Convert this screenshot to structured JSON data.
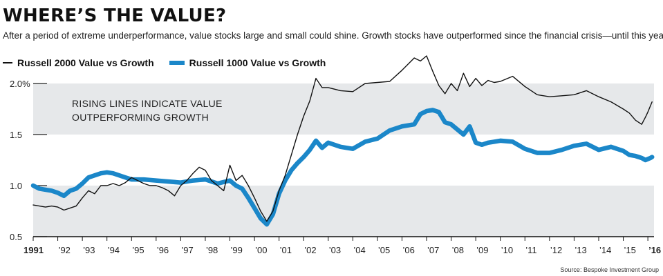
{
  "header": {
    "title": "WHERE’S THE VALUE?",
    "subtitle": "After a period of extreme underperformance, value stocks large and small could shine. Growth stocks have outperformed since the financial crisis—until this year."
  },
  "legend": {
    "series1": "Russell 2000 Value vs Growth",
    "series2": "Russell 1000 Value vs Growth"
  },
  "source": "Source: Bespoke Investment Group",
  "chart_data": {
    "type": "line",
    "title": "WHERE’S THE VALUE?",
    "annotation": [
      "RISING LINES INDICATE VALUE",
      "OUTPERFORMING GROWTH"
    ],
    "xlim": [
      1991,
      2016.25
    ],
    "ylim": [
      0.5,
      2.0
    ],
    "xticks": [
      {
        "x": 1991,
        "label": "1991"
      },
      {
        "x": 1992,
        "label": "’92"
      },
      {
        "x": 1993,
        "label": "’93"
      },
      {
        "x": 1994,
        "label": "’94"
      },
      {
        "x": 1995,
        "label": "’95"
      },
      {
        "x": 1996,
        "label": "’96"
      },
      {
        "x": 1997,
        "label": "’97"
      },
      {
        "x": 1998,
        "label": "’98"
      },
      {
        "x": 1999,
        "label": "’99"
      },
      {
        "x": 2000,
        "label": "’00"
      },
      {
        "x": 2001,
        "label": "’01"
      },
      {
        "x": 2002,
        "label": "’02"
      },
      {
        "x": 2003,
        "label": "’03"
      },
      {
        "x": 2004,
        "label": "’04"
      },
      {
        "x": 2005,
        "label": "’05"
      },
      {
        "x": 2006,
        "label": "’06"
      },
      {
        "x": 2007,
        "label": "’07"
      },
      {
        "x": 2008,
        "label": "’08"
      },
      {
        "x": 2009,
        "label": "’09"
      },
      {
        "x": 2010,
        "label": "’10"
      },
      {
        "x": 2011,
        "label": "’11"
      },
      {
        "x": 2012,
        "label": "’12"
      },
      {
        "x": 2013,
        "label": "’13"
      },
      {
        "x": 2014,
        "label": "’14"
      },
      {
        "x": 2015,
        "label": "’15"
      },
      {
        "x": 2016,
        "label": "’16"
      }
    ],
    "yticks": [
      {
        "y": 0.5,
        "label": "0.5"
      },
      {
        "y": 1.0,
        "label": "1.0"
      },
      {
        "y": 1.5,
        "label": "1.5"
      },
      {
        "y": 2.0,
        "label": "2.0%"
      }
    ],
    "bands": [
      [
        0.5,
        1.0
      ],
      [
        1.5,
        2.0
      ]
    ],
    "colors": {
      "series1": "#111111",
      "series2": "#1b87c9",
      "band": "#e6e8ea"
    },
    "series": [
      {
        "name": "Russell 2000 Value vs Growth",
        "x": [
          1991.0,
          1991.25,
          1991.5,
          1991.75,
          1992.0,
          1992.25,
          1992.5,
          1992.75,
          1993.0,
          1993.25,
          1993.5,
          1993.75,
          1994.0,
          1994.25,
          1994.5,
          1994.75,
          1995.0,
          1995.25,
          1995.5,
          1995.75,
          1996.0,
          1996.25,
          1996.5,
          1996.75,
          1997.0,
          1997.25,
          1997.5,
          1997.75,
          1998.0,
          1998.25,
          1998.5,
          1998.75,
          1999.0,
          1999.25,
          1999.5,
          1999.75,
          2000.0,
          2000.25,
          2000.5,
          2000.75,
          2001.0,
          2001.25,
          2001.5,
          2001.75,
          2002.0,
          2002.25,
          2002.5,
          2002.75,
          2003.0,
          2003.5,
          2004.0,
          2004.5,
          2005.0,
          2005.5,
          2006.0,
          2006.5,
          2006.75,
          2007.0,
          2007.25,
          2007.5,
          2007.75,
          2008.0,
          2008.25,
          2008.5,
          2008.75,
          2009.0,
          2009.25,
          2009.5,
          2009.75,
          2010.0,
          2010.5,
          2011.0,
          2011.5,
          2012.0,
          2012.5,
          2013.0,
          2013.5,
          2014.0,
          2014.5,
          2015.0,
          2015.25,
          2015.5,
          2015.75,
          2015.9,
          2016.0,
          2016.1,
          2016.17
        ],
        "values": [
          0.81,
          0.8,
          0.79,
          0.8,
          0.79,
          0.76,
          0.78,
          0.8,
          0.88,
          0.95,
          0.92,
          1.0,
          1.0,
          1.02,
          1.0,
          1.03,
          1.08,
          1.05,
          1.02,
          1.0,
          1.0,
          0.98,
          0.95,
          0.9,
          1.0,
          1.05,
          1.12,
          1.18,
          1.15,
          1.05,
          1.0,
          0.95,
          1.2,
          1.05,
          1.1,
          1.0,
          0.88,
          0.75,
          0.65,
          0.75,
          0.95,
          1.1,
          1.3,
          1.5,
          1.68,
          1.83,
          2.05,
          1.96,
          1.96,
          1.93,
          1.92,
          2.0,
          2.01,
          2.02,
          2.13,
          2.25,
          2.22,
          2.27,
          2.12,
          1.98,
          1.9,
          2.0,
          1.93,
          2.1,
          1.97,
          2.05,
          1.98,
          2.03,
          2.01,
          2.02,
          2.07,
          1.97,
          1.89,
          1.87,
          1.88,
          1.89,
          1.93,
          1.87,
          1.82,
          1.75,
          1.71,
          1.64,
          1.6,
          1.67,
          1.72,
          1.78,
          1.82
        ]
      },
      {
        "name": "Russell 1000 Value vs Growth",
        "x": [
          1991.0,
          1991.25,
          1991.5,
          1991.75,
          1992.0,
          1992.25,
          1992.5,
          1992.75,
          1993.0,
          1993.25,
          1993.5,
          1993.75,
          1994.0,
          1994.25,
          1994.5,
          1994.75,
          1995.0,
          1995.5,
          1996.0,
          1996.5,
          1997.0,
          1997.5,
          1998.0,
          1998.5,
          1999.0,
          1999.25,
          1999.5,
          1999.75,
          2000.0,
          2000.25,
          2000.5,
          2000.75,
          2001.0,
          2001.25,
          2001.5,
          2001.75,
          2002.0,
          2002.25,
          2002.5,
          2002.75,
          2003.0,
          2003.5,
          2004.0,
          2004.5,
          2005.0,
          2005.5,
          2006.0,
          2006.5,
          2006.75,
          2007.0,
          2007.25,
          2007.5,
          2007.75,
          2008.0,
          2008.25,
          2008.5,
          2008.75,
          2009.0,
          2009.25,
          2009.5,
          2009.75,
          2010.0,
          2010.5,
          2011.0,
          2011.5,
          2012.0,
          2012.5,
          2013.0,
          2013.5,
          2014.0,
          2014.5,
          2015.0,
          2015.25,
          2015.5,
          2015.75,
          2015.9,
          2016.0,
          2016.1,
          2016.17
        ],
        "values": [
          1.0,
          0.97,
          0.96,
          0.95,
          0.93,
          0.9,
          0.95,
          0.97,
          1.02,
          1.08,
          1.1,
          1.12,
          1.13,
          1.12,
          1.1,
          1.08,
          1.06,
          1.06,
          1.05,
          1.04,
          1.03,
          1.05,
          1.06,
          1.02,
          1.05,
          1.0,
          0.97,
          0.88,
          0.78,
          0.68,
          0.62,
          0.72,
          0.92,
          1.05,
          1.15,
          1.22,
          1.28,
          1.35,
          1.44,
          1.37,
          1.42,
          1.38,
          1.36,
          1.43,
          1.46,
          1.54,
          1.58,
          1.6,
          1.7,
          1.73,
          1.74,
          1.72,
          1.62,
          1.6,
          1.55,
          1.5,
          1.58,
          1.42,
          1.4,
          1.42,
          1.43,
          1.44,
          1.43,
          1.36,
          1.32,
          1.32,
          1.35,
          1.39,
          1.41,
          1.35,
          1.38,
          1.34,
          1.3,
          1.29,
          1.27,
          1.25,
          1.26,
          1.27,
          1.28
        ]
      }
    ]
  }
}
